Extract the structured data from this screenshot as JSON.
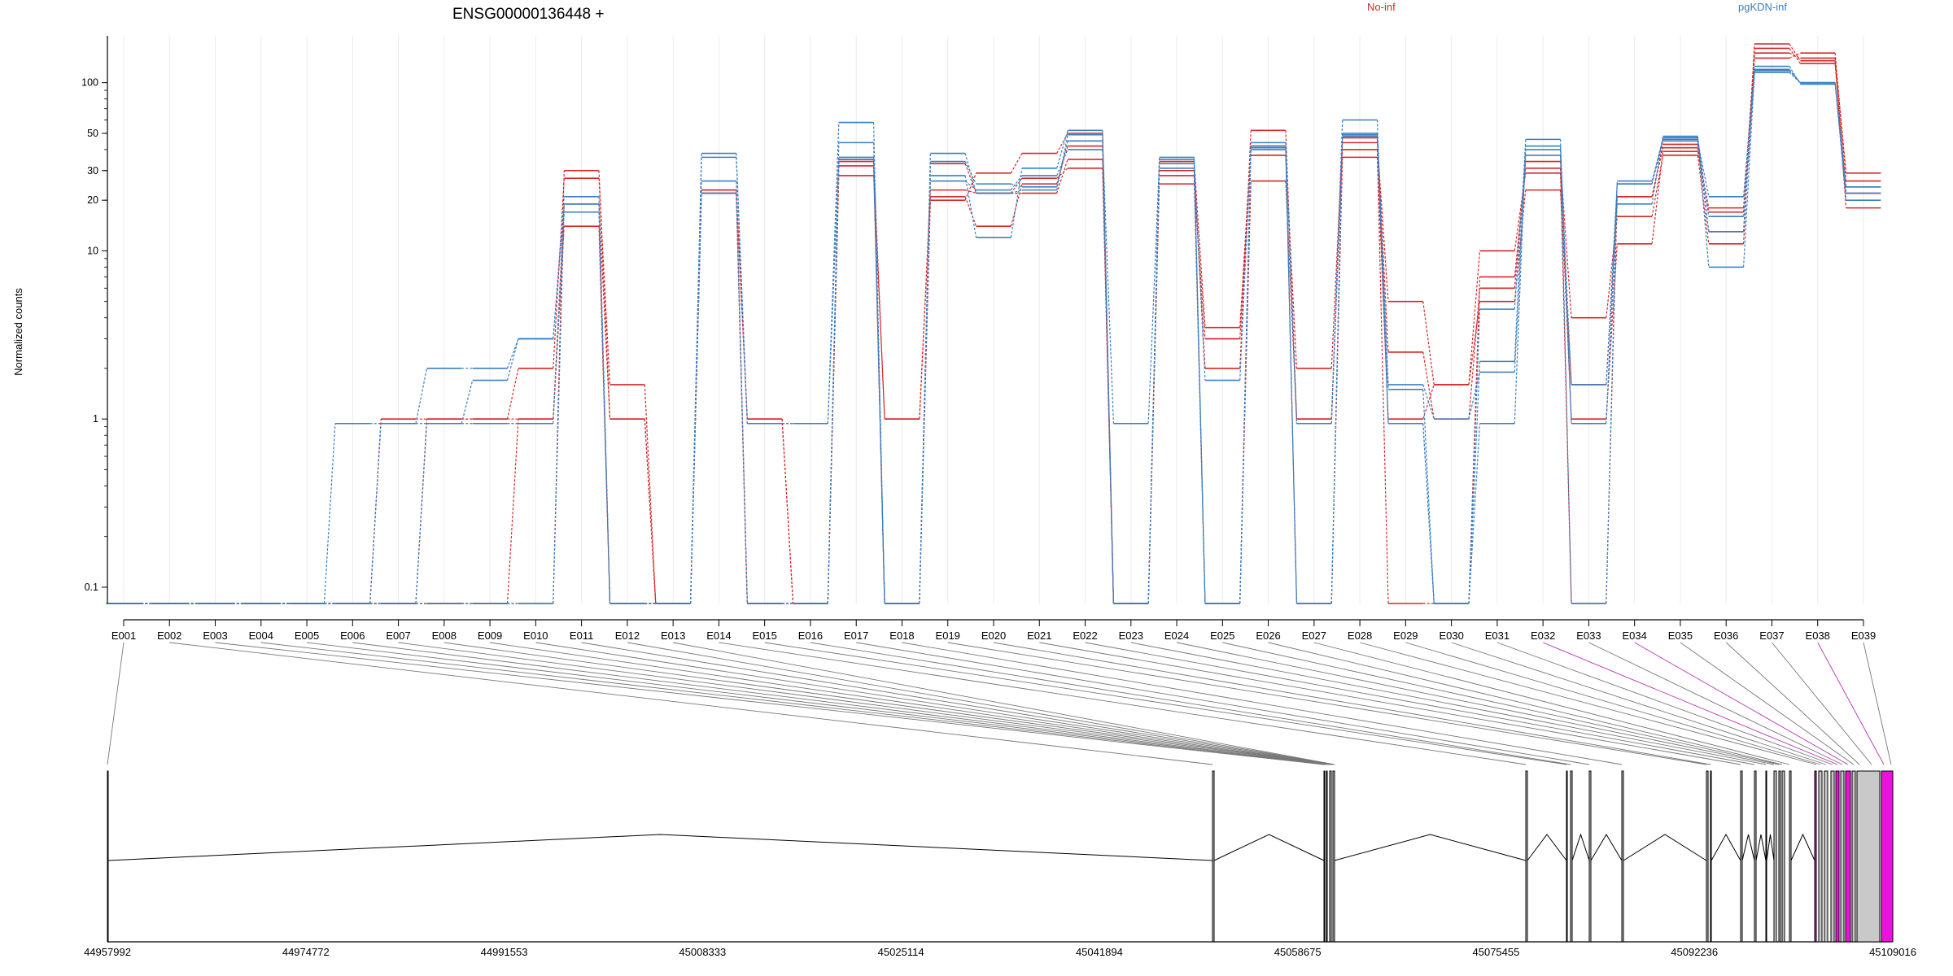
{
  "chart_data": {
    "type": "line",
    "title": "ENSG00000136448 +",
    "ylabel": "Normalized counts",
    "yscale": "log",
    "ylim": [
      0.08,
      190
    ],
    "yticks": [
      0.1,
      1,
      10,
      20,
      30,
      50,
      100
    ],
    "ytick_labels": [
      "0.1",
      "1",
      "10",
      "20",
      "30",
      "50",
      "100"
    ],
    "categories": [
      "E001",
      "E002",
      "E003",
      "E004",
      "E005",
      "E006",
      "E007",
      "E008",
      "E009",
      "E010",
      "E011",
      "E012",
      "E013",
      "E014",
      "E015",
      "E016",
      "E017",
      "E018",
      "E019",
      "E020",
      "E021",
      "E022",
      "E023",
      "E024",
      "E025",
      "E026",
      "E027",
      "E028",
      "E029",
      "E030",
      "E031",
      "E032",
      "E033",
      "E034",
      "E035",
      "E036",
      "E037",
      "E038",
      "E039"
    ],
    "legend": [
      {
        "name": "No-inf",
        "color": "#d62728"
      },
      {
        "name": "pgKDN-inf",
        "color": "#3a7fc1"
      }
    ],
    "colors": {
      "No-inf": "#d62728",
      "pgKDN-inf": "#3a7fc1"
    },
    "series": [
      {
        "group": "No-inf",
        "values": [
          0.08,
          0.08,
          0.08,
          0.08,
          0.08,
          0.08,
          1,
          1,
          1,
          1,
          19,
          1,
          0.08,
          23,
          1,
          0.08,
          34,
          1,
          21,
          14,
          25,
          42,
          0.08,
          30,
          2,
          52,
          1,
          47,
          2.5,
          1,
          6,
          34,
          4,
          16,
          37,
          11,
          170,
          135,
          18
        ]
      },
      {
        "group": "No-inf",
        "values": [
          0.08,
          0.08,
          0.08,
          0.08,
          0.08,
          0.08,
          0.08,
          1,
          1,
          2,
          27,
          1.6,
          0.08,
          22,
          1,
          0.08,
          28,
          1,
          23,
          22,
          22,
          35,
          0.08,
          25,
          3,
          37,
          2,
          44,
          5,
          1.6,
          10,
          29,
          1,
          11,
          39,
          18,
          140,
          150,
          26
        ]
      },
      {
        "group": "No-inf",
        "values": [
          0.08,
          0.08,
          0.08,
          0.08,
          0.08,
          0.08,
          0.08,
          0.08,
          0.08,
          1,
          14,
          0.08,
          0.08,
          23,
          0.08,
          0.08,
          32,
          0.08,
          20,
          29,
          38,
          50,
          0.08,
          34,
          3.5,
          42,
          0.08,
          36,
          1,
          1.6,
          5,
          23,
          1.6,
          21,
          43,
          13,
          150,
          140,
          29
        ]
      },
      {
        "group": "No-inf",
        "values": [
          0.08,
          0.08,
          0.08,
          0.08,
          0.08,
          0.08,
          0.08,
          0.08,
          0.08,
          0.08,
          30,
          1,
          0.08,
          22,
          0.08,
          0.08,
          35,
          0.08,
          33,
          22,
          27,
          31,
          0.08,
          28,
          0.08,
          26,
          1,
          40,
          0.08,
          0.08,
          7,
          31,
          0.08,
          21,
          41,
          17,
          160,
          130,
          22
        ]
      },
      {
        "group": "pgKDN-inf",
        "values": [
          0.08,
          0.08,
          0.08,
          0.08,
          0.08,
          0.94,
          0.94,
          0.94,
          0.94,
          0.94,
          17,
          0.08,
          0.08,
          36,
          0.94,
          0.94,
          35,
          0.08,
          34,
          25,
          24,
          45,
          0.94,
          33,
          1.7,
          42,
          0.94,
          60,
          0.94,
          0.08,
          2.2,
          46,
          0.94,
          19,
          48,
          13,
          120,
          100,
          24
        ]
      },
      {
        "group": "pgKDN-inf",
        "values": [
          0.08,
          0.08,
          0.08,
          0.08,
          0.08,
          0.08,
          0.94,
          2,
          2,
          3,
          21,
          0.08,
          0.08,
          26,
          0.08,
          0.08,
          44,
          0.08,
          28,
          12,
          31,
          52,
          0.08,
          36,
          0.08,
          44,
          0.94,
          48,
          1.6,
          1,
          1.9,
          37,
          1.6,
          25,
          45,
          21,
          125,
          98,
          22
        ]
      },
      {
        "group": "pgKDN-inf",
        "values": [
          0.08,
          0.08,
          0.08,
          0.08,
          0.08,
          0.08,
          0.08,
          0.94,
          1.7,
          3,
          19,
          0.08,
          0.08,
          38,
          0.94,
          0.94,
          58,
          0.08,
          38,
          22,
          23,
          49,
          0.08,
          35,
          0.08,
          41,
          0.08,
          49,
          0.94,
          0.08,
          0.94,
          42,
          0.94,
          25,
          47,
          8,
          115,
          100,
          20
        ]
      },
      {
        "group": "pgKDN-inf",
        "values": [
          0.08,
          0.08,
          0.08,
          0.08,
          0.08,
          0.08,
          0.08,
          0.08,
          0.08,
          0.08,
          19,
          0.08,
          0.08,
          22,
          0.08,
          0.08,
          36,
          0.08,
          26,
          23,
          28,
          40,
          0.08,
          31,
          0.08,
          40,
          0.08,
          50,
          1.5,
          0.08,
          4.5,
          40,
          0.08,
          26,
          46,
          16,
          118,
          100,
          24
        ]
      }
    ],
    "genomic_positions": [
      "44957992",
      "44974772",
      "44991553",
      "45008333",
      "45025114",
      "45041894",
      "45058675",
      "45075455",
      "45092236",
      "45109016"
    ],
    "highlight_color": "#ee11dd",
    "grid": "vertical light gridlines",
    "legend_placement": "top"
  }
}
